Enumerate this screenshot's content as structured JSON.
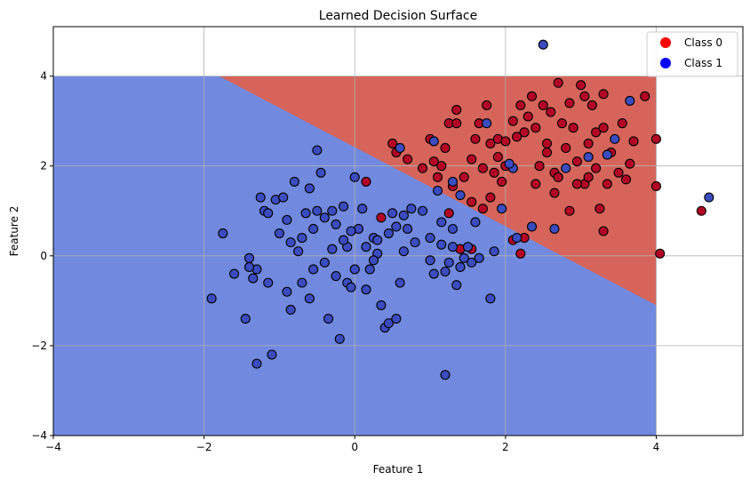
{
  "chart_data": {
    "type": "scatter",
    "title": "Learned Decision Surface",
    "xlabel": "Feature 1",
    "ylabel": "Feature 2",
    "xlim": [
      -4,
      5.15
    ],
    "ylim": [
      -4,
      5.1
    ],
    "xticks": [
      -4,
      -2,
      0,
      2,
      4
    ],
    "xtick_labels": [
      "−4",
      "−2",
      "0",
      "2",
      "4"
    ],
    "yticks": [
      -4,
      -2,
      0,
      2,
      4
    ],
    "ytick_labels": [
      "−4",
      "−2",
      "0",
      "2",
      "4"
    ],
    "grid": true,
    "legend": "top-right",
    "decision_surface": {
      "grid_x_range": [
        -4,
        4
      ],
      "grid_y_range": [
        -4,
        4
      ],
      "boundary_line": [
        [
          -1.8,
          4.0
        ],
        [
          4.0,
          -1.1
        ]
      ],
      "class0_region_color": "#d6645a",
      "class1_region_color": "#7289e0"
    },
    "series": [
      {
        "name": "Class 0",
        "legend_color": "#ff0000",
        "marker_color": "#b40426",
        "points": [
          [
            0.5,
            2.5
          ],
          [
            0.55,
            2.3
          ],
          [
            0.7,
            2.15
          ],
          [
            0.9,
            1.95
          ],
          [
            1.0,
            2.6
          ],
          [
            1.05,
            2.1
          ],
          [
            1.1,
            1.75
          ],
          [
            1.15,
            2.0
          ],
          [
            1.2,
            2.4
          ],
          [
            1.25,
            2.95
          ],
          [
            1.35,
            3.25
          ],
          [
            1.45,
            1.75
          ],
          [
            1.55,
            2.15
          ],
          [
            1.6,
            2.6
          ],
          [
            1.65,
            2.95
          ],
          [
            1.7,
            1.95
          ],
          [
            1.75,
            3.35
          ],
          [
            1.8,
            2.5
          ],
          [
            1.85,
            1.85
          ],
          [
            1.9,
            2.6
          ],
          [
            1.95,
            1.65
          ],
          [
            2.0,
            2.0
          ],
          [
            2.1,
            3.0
          ],
          [
            2.15,
            2.65
          ],
          [
            2.2,
            3.35
          ],
          [
            2.25,
            2.75
          ],
          [
            2.3,
            3.1
          ],
          [
            2.35,
            3.55
          ],
          [
            2.4,
            1.6
          ],
          [
            2.45,
            2.0
          ],
          [
            2.5,
            3.35
          ],
          [
            2.55,
            2.5
          ],
          [
            2.6,
            3.2
          ],
          [
            2.65,
            1.85
          ],
          [
            2.7,
            3.85
          ],
          [
            2.75,
            2.95
          ],
          [
            2.8,
            2.4
          ],
          [
            2.85,
            1.0
          ],
          [
            2.9,
            2.85
          ],
          [
            2.95,
            2.1
          ],
          [
            3.0,
            3.8
          ],
          [
            3.05,
            1.6
          ],
          [
            3.1,
            2.5
          ],
          [
            3.15,
            3.35
          ],
          [
            3.2,
            1.95
          ],
          [
            3.25,
            1.05
          ],
          [
            3.3,
            2.85
          ],
          [
            3.35,
            1.6
          ],
          [
            3.4,
            2.3
          ],
          [
            3.5,
            1.85
          ],
          [
            3.55,
            2.95
          ],
          [
            3.6,
            1.7
          ],
          [
            3.65,
            2.05
          ],
          [
            3.7,
            2.55
          ],
          [
            3.85,
            3.55
          ],
          [
            4.0,
            2.6
          ],
          [
            4.0,
            1.55
          ],
          [
            4.05,
            0.05
          ],
          [
            4.6,
            1.0
          ],
          [
            3.3,
            0.55
          ],
          [
            3.3,
            3.6
          ],
          [
            3.05,
            3.55
          ],
          [
            2.65,
            1.4
          ],
          [
            2.2,
            0.05
          ],
          [
            2.1,
            0.35
          ],
          [
            2.25,
            0.4
          ],
          [
            1.55,
            0.15
          ],
          [
            1.4,
            0.15
          ],
          [
            1.25,
            0.95
          ],
          [
            0.35,
            0.85
          ],
          [
            0.15,
            1.65
          ],
          [
            1.35,
            2.95
          ],
          [
            1.55,
            1.2
          ],
          [
            1.7,
            1.05
          ],
          [
            1.8,
            1.3
          ],
          [
            2.0,
            2.55
          ],
          [
            2.4,
            2.85
          ],
          [
            2.7,
            1.75
          ],
          [
            2.95,
            1.6
          ],
          [
            3.1,
            1.75
          ],
          [
            3.2,
            2.75
          ],
          [
            1.9,
            2.2
          ],
          [
            1.3,
            1.55
          ],
          [
            2.85,
            3.4
          ],
          [
            2.55,
            2.3
          ]
        ]
      },
      {
        "name": "Class 1",
        "legend_color": "#0000ff",
        "marker_color": "#3b4cc0",
        "points": [
          [
            -1.9,
            -0.95
          ],
          [
            -1.75,
            0.5
          ],
          [
            -1.6,
            -0.4
          ],
          [
            -1.45,
            -1.4
          ],
          [
            -1.4,
            -0.05
          ],
          [
            -1.35,
            -0.5
          ],
          [
            -1.3,
            -0.3
          ],
          [
            -1.25,
            1.3
          ],
          [
            -1.2,
            1.0
          ],
          [
            -1.15,
            -0.6
          ],
          [
            -1.1,
            -2.2
          ],
          [
            -1.05,
            1.25
          ],
          [
            -1.0,
            0.5
          ],
          [
            -0.95,
            1.3
          ],
          [
            -0.9,
            0.8
          ],
          [
            -0.85,
            -1.2
          ],
          [
            -0.8,
            1.65
          ],
          [
            -0.75,
            0.1
          ],
          [
            -0.7,
            -0.6
          ],
          [
            -0.65,
            0.95
          ],
          [
            -0.6,
            1.5
          ],
          [
            -0.55,
            0.6
          ],
          [
            -0.5,
            1.0
          ],
          [
            -0.45,
            1.85
          ],
          [
            -0.4,
            0.85
          ],
          [
            -0.35,
            -1.4
          ],
          [
            -0.3,
            0.15
          ],
          [
            -0.25,
            -0.45
          ],
          [
            -0.2,
            -1.85
          ],
          [
            -0.15,
            1.1
          ],
          [
            -0.1,
            -0.6
          ],
          [
            -0.05,
            -0.7
          ],
          [
            0.0,
            1.75
          ],
          [
            0.05,
            0.6
          ],
          [
            0.1,
            1.05
          ],
          [
            0.15,
            0.2
          ],
          [
            0.2,
            -0.3
          ],
          [
            0.25,
            0.4
          ],
          [
            0.3,
            0.05
          ],
          [
            0.35,
            -1.1
          ],
          [
            0.4,
            -1.6
          ],
          [
            0.45,
            -1.5
          ],
          [
            0.5,
            0.95
          ],
          [
            0.55,
            0.65
          ],
          [
            0.6,
            -0.6
          ],
          [
            0.65,
            0.9
          ],
          [
            0.7,
            0.6
          ],
          [
            0.75,
            1.05
          ],
          [
            0.8,
            0.3
          ],
          [
            1.0,
            0.4
          ],
          [
            1.05,
            -0.4
          ],
          [
            1.1,
            1.45
          ],
          [
            1.15,
            0.25
          ],
          [
            1.2,
            -0.35
          ],
          [
            1.25,
            -0.15
          ],
          [
            1.3,
            0.2
          ],
          [
            1.35,
            -0.65
          ],
          [
            1.4,
            1.35
          ],
          [
            1.45,
            -0.05
          ],
          [
            1.5,
            0.2
          ],
          [
            1.6,
            0.75
          ],
          [
            1.65,
            -0.05
          ],
          [
            1.8,
            -0.95
          ],
          [
            1.85,
            0.1
          ],
          [
            2.1,
            1.95
          ],
          [
            2.15,
            0.4
          ],
          [
            2.35,
            0.65
          ],
          [
            2.5,
            4.7
          ],
          [
            2.65,
            0.6
          ],
          [
            2.8,
            1.95
          ],
          [
            3.1,
            2.2
          ],
          [
            3.35,
            2.25
          ],
          [
            3.45,
            2.6
          ],
          [
            3.65,
            3.45
          ],
          [
            4.7,
            1.3
          ],
          [
            1.75,
            2.95
          ],
          [
            2.05,
            2.05
          ],
          [
            1.05,
            2.55
          ],
          [
            1.3,
            1.65
          ],
          [
            1.95,
            1.05
          ],
          [
            0.6,
            2.4
          ],
          [
            -0.5,
            2.35
          ],
          [
            -1.3,
            -2.4
          ],
          [
            -1.4,
            -0.25
          ],
          [
            -0.1,
            0.2
          ],
          [
            -0.4,
            -0.15
          ],
          [
            -0.7,
            0.4
          ],
          [
            0.0,
            -0.3
          ],
          [
            -0.15,
            0.35
          ],
          [
            -0.9,
            -0.8
          ],
          [
            1.2,
            -2.65
          ],
          [
            0.3,
            0.35
          ],
          [
            0.55,
            -1.4
          ],
          [
            -0.6,
            -0.95
          ],
          [
            -0.3,
            1.0
          ],
          [
            0.9,
            1.0
          ],
          [
            1.3,
            0.6
          ],
          [
            1.55,
            -0.15
          ],
          [
            0.65,
            0.1
          ],
          [
            -0.85,
            0.3
          ],
          [
            -0.55,
            -0.3
          ],
          [
            -0.05,
            0.55
          ],
          [
            0.15,
            -0.75
          ],
          [
            1.15,
            0.75
          ],
          [
            1.4,
            -0.25
          ],
          [
            -1.15,
            0.95
          ],
          [
            0.45,
            0.5
          ],
          [
            0.25,
            -0.1
          ],
          [
            -0.25,
            0.7
          ],
          [
            1.0,
            -0.1
          ]
        ]
      }
    ]
  }
}
